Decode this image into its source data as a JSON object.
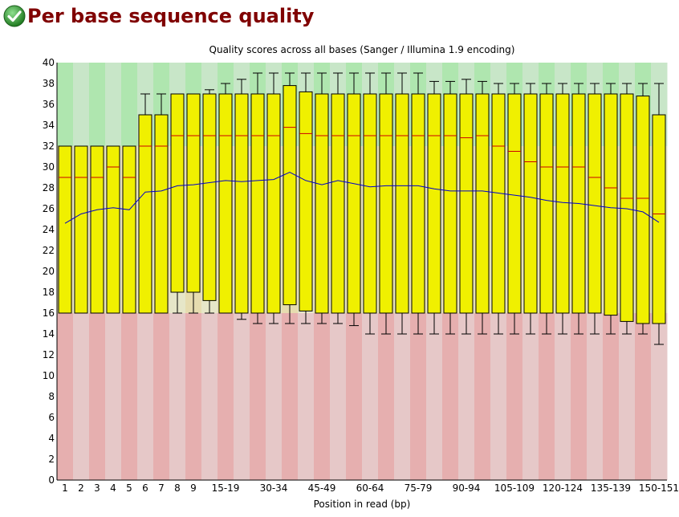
{
  "header": {
    "title": "Per base sequence quality",
    "status_icon": "pass-check-icon",
    "status_color": "#2e8b2e"
  },
  "chart_data": {
    "type": "box",
    "title": "Quality scores across all bases (Sanger / Illumina 1.9 encoding)",
    "xlabel": "Position in read (bp)",
    "ylabel": "",
    "ylim": [
      0,
      40
    ],
    "yticks": [
      0,
      2,
      4,
      6,
      8,
      10,
      12,
      14,
      16,
      18,
      20,
      22,
      24,
      26,
      28,
      30,
      32,
      34,
      36,
      38,
      40
    ],
    "zones": [
      {
        "from": 0,
        "to": 16,
        "colors": [
          "#e6afaf",
          "#e6c8c8"
        ]
      },
      {
        "from": 16,
        "to": 32,
        "colors": [
          "#e6dcaf",
          "#e6e6c8"
        ]
      },
      {
        "from": 32,
        "to": 40,
        "colors": [
          "#afe6af",
          "#c8e6c8"
        ]
      }
    ],
    "colors": {
      "box_fill": "#f0f000",
      "median_line": "#cc0000",
      "mean_line": "#0000cc",
      "whisker": "#000000"
    },
    "categories": [
      "1",
      "2",
      "3",
      "4",
      "5",
      "6",
      "7",
      "8",
      "9",
      "10-14",
      "15-19",
      "20-24",
      "25-29",
      "30-34",
      "35-39",
      "40-44",
      "45-49",
      "50-54",
      "55-59",
      "60-64",
      "65-69",
      "70-74",
      "75-79",
      "80-84",
      "85-89",
      "90-94",
      "95-99",
      "100-104",
      "105-109",
      "110-114",
      "115-119",
      "120-124",
      "125-129",
      "130-134",
      "135-139",
      "140-144",
      "145-149",
      "150-151"
    ],
    "tick_labels": [
      "1",
      "2",
      "3",
      "4",
      "5",
      "6",
      "7",
      "8",
      "9",
      "",
      "15-19",
      "",
      "",
      "30-34",
      "",
      "",
      "45-49",
      "",
      "",
      "60-64",
      "",
      "",
      "75-79",
      "",
      "",
      "90-94",
      "",
      "",
      "105-109",
      "",
      "",
      "120-124",
      "",
      "",
      "135-139",
      "",
      "",
      "150-151"
    ],
    "lower_whisker": [
      16,
      16,
      16,
      16,
      16,
      16,
      16,
      16,
      16,
      16,
      16,
      15.4,
      15,
      15,
      15,
      15,
      15,
      15,
      14.8,
      14,
      14,
      14,
      14,
      14,
      14,
      14,
      14,
      14,
      14,
      14,
      14,
      14,
      14,
      14,
      14,
      14,
      14,
      13
    ],
    "q1": [
      16,
      16,
      16,
      16,
      16,
      16,
      16,
      18,
      18,
      17.2,
      16,
      16,
      16,
      16,
      16.8,
      16.2,
      16,
      16,
      16,
      16,
      16,
      16,
      16,
      16,
      16,
      16,
      16,
      16,
      16,
      16,
      16,
      16,
      16,
      16,
      15.8,
      15.2,
      15,
      15
    ],
    "median": [
      29,
      29,
      29,
      30,
      29,
      32,
      32,
      33,
      33,
      33,
      33,
      33,
      33,
      33,
      33.8,
      33.2,
      33,
      33,
      33,
      33,
      33,
      33,
      33,
      33,
      33,
      32.8,
      33,
      32,
      31.5,
      30.5,
      30,
      30,
      30,
      29,
      28,
      27,
      27,
      25.5
    ],
    "q3": [
      32,
      32,
      32,
      32,
      32,
      35,
      35,
      37,
      37,
      37,
      37,
      37,
      37,
      37,
      37.8,
      37.2,
      37,
      37,
      37,
      37,
      37,
      37,
      37,
      37,
      37,
      37,
      37,
      37,
      37,
      37,
      37,
      37,
      37,
      37,
      37,
      37,
      36.8,
      35
    ],
    "upper_whisker": [
      32,
      32,
      32,
      32,
      32,
      37,
      37,
      37,
      37,
      37.4,
      38,
      38.4,
      39,
      39,
      39,
      39,
      39,
      39,
      39,
      39,
      39,
      39,
      39,
      38.2,
      38.2,
      38.4,
      38.2,
      38,
      38,
      38,
      38,
      38,
      38,
      38,
      38,
      38,
      38,
      38
    ],
    "mean": [
      24.6,
      25.5,
      25.9,
      26.1,
      25.9,
      27.6,
      27.7,
      28.2,
      28.3,
      28.5,
      28.7,
      28.6,
      28.7,
      28.8,
      29.5,
      28.7,
      28.3,
      28.7,
      28.4,
      28.1,
      28.2,
      28.2,
      28.2,
      27.9,
      27.7,
      27.7,
      27.7,
      27.5,
      27.3,
      27.1,
      26.8,
      26.6,
      26.5,
      26.3,
      26.1,
      26.0,
      25.7,
      24.7
    ]
  }
}
